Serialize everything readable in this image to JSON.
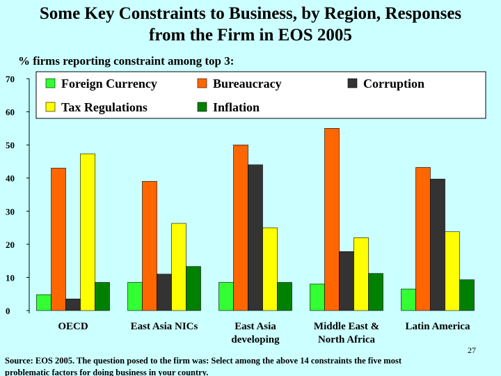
{
  "page": {
    "title_line1": "Some Key Constraints to Business, by Region, Responses",
    "title_line2": "from the Firm in EOS 2005",
    "subtitle": "% firms reporting constraint among top 3:",
    "slide_number": "27",
    "source_line1": "Source: EOS 2005.  The question posed to the firm was: Select among the above 14 constraints the five most",
    "source_line2": "problematic factors for doing business in your country."
  },
  "chart_data": {
    "type": "bar",
    "title": "",
    "xlabel": "",
    "ylabel": "",
    "ylim": [
      0,
      70
    ],
    "yticks": [
      0,
      10,
      20,
      30,
      40,
      50,
      60,
      70
    ],
    "grid": false,
    "legend_placement": "top",
    "categories": [
      [
        "OECD"
      ],
      [
        "East Asia NICs"
      ],
      [
        "East Asia",
        "developing"
      ],
      [
        "Middle East &",
        "North Africa"
      ],
      [
        "Latin America"
      ]
    ],
    "series": [
      {
        "name": "Foreign Currency",
        "color": "#33ff33",
        "values": [
          4.8,
          8.5,
          8.5,
          8.0,
          6.5
        ]
      },
      {
        "name": "Bureaucracy",
        "color": "#ff6600",
        "values": [
          43.0,
          39.0,
          50.0,
          55.0,
          43.2
        ]
      },
      {
        "name": "Corruption",
        "color": "#333333",
        "values": [
          3.5,
          11.0,
          44.0,
          17.8,
          39.7
        ]
      },
      {
        "name": "Tax Regulations",
        "color": "#ffff00",
        "values": [
          47.3,
          26.3,
          25.0,
          22.0,
          23.8
        ]
      },
      {
        "name": "Inflation",
        "color": "#008000",
        "values": [
          8.5,
          13.3,
          8.5,
          11.2,
          9.3
        ]
      }
    ]
  }
}
